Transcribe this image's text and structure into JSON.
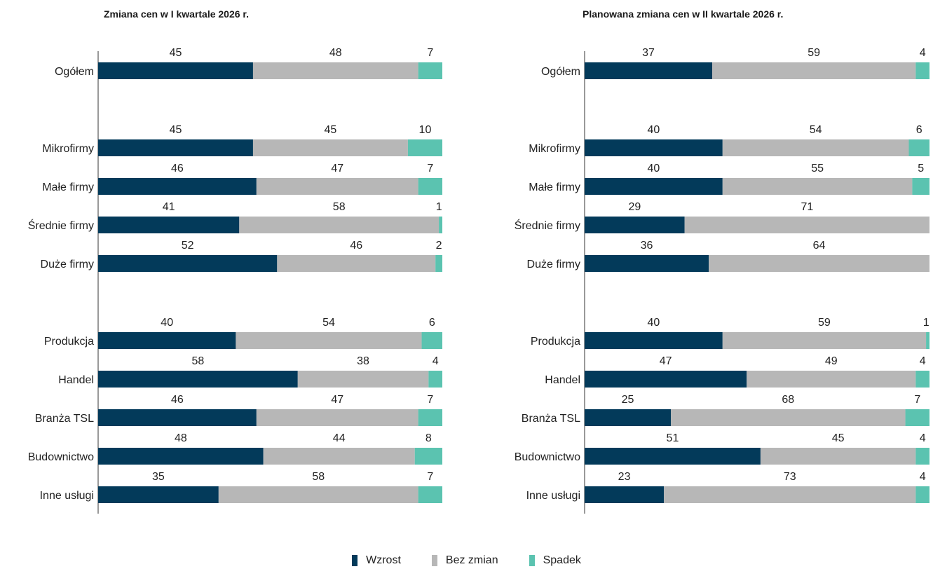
{
  "colors": {
    "wzrost": "#033a5a",
    "bez_zmian": "#b7b7b7",
    "spadek": "#5bc3b0",
    "axis": "#333333"
  },
  "legend": [
    {
      "key": "wzrost",
      "label": "Wzrost"
    },
    {
      "key": "bez_zmian",
      "label": "Bez zmian"
    },
    {
      "key": "spadek",
      "label": "Spadek"
    }
  ],
  "chart_data": [
    {
      "type": "bar",
      "orientation": "horizontal",
      "stacked": true,
      "title": "Zmiana cen w I kwartale 2026 r.",
      "xlim": [
        0,
        100
      ],
      "categories": [
        "Ogółem",
        "Mikrofirmy",
        "Małe firmy",
        "Średnie firmy",
        "Duże firmy",
        "Produkcja",
        "Handel",
        "Branża TSL",
        "Budownictwo",
        "Inne usługi"
      ],
      "series": [
        {
          "name": "Wzrost",
          "values": [
            45,
            45,
            46,
            41,
            52,
            40,
            58,
            46,
            48,
            35
          ]
        },
        {
          "name": "Bez zmian",
          "values": [
            48,
            45,
            47,
            58,
            46,
            54,
            38,
            47,
            44,
            58
          ]
        },
        {
          "name": "Spadek",
          "values": [
            7,
            10,
            7,
            1,
            2,
            6,
            4,
            7,
            8,
            7
          ]
        }
      ]
    },
    {
      "type": "bar",
      "orientation": "horizontal",
      "stacked": true,
      "title": "Planowana zmiana cen w II kwartale 2026 r.",
      "xlim": [
        0,
        100
      ],
      "categories": [
        "Ogółem",
        "Mikrofirmy",
        "Małe firmy",
        "Średnie firmy",
        "Duże firmy",
        "Produkcja",
        "Handel",
        "Branża TSL",
        "Budownictwo",
        "Inne usługi"
      ],
      "series": [
        {
          "name": "Wzrost",
          "values": [
            37,
            40,
            40,
            29,
            36,
            40,
            47,
            25,
            51,
            23
          ]
        },
        {
          "name": "Bez zmian",
          "values": [
            59,
            54,
            55,
            71,
            64,
            59,
            49,
            68,
            45,
            73
          ]
        },
        {
          "name": "Spadek",
          "values": [
            4,
            6,
            5,
            null,
            null,
            1,
            4,
            7,
            4,
            4
          ]
        }
      ]
    }
  ]
}
